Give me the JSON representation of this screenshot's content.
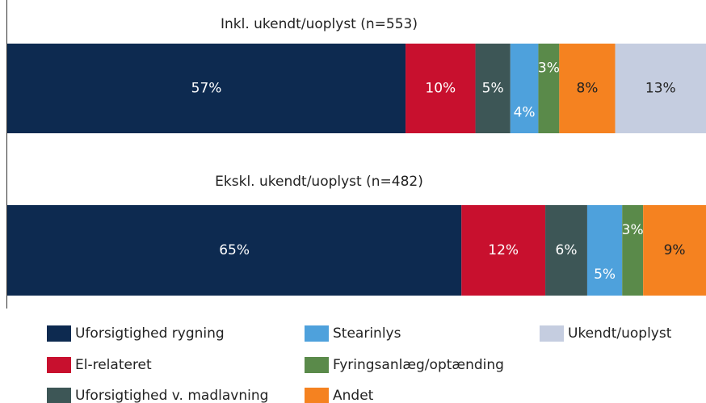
{
  "chart_data": {
    "type": "stacked-barh",
    "categories": [
      "Inkl. ukendt/uoplyst (n=553)",
      "Ekskl. ukendt/uoplyst (n=482)"
    ],
    "xlim": [
      0,
      100
    ],
    "series": [
      {
        "name": "Uforsigtighed rygning",
        "color": "#0d2a50",
        "values": [
          57,
          65
        ],
        "value_labels": [
          "57%",
          "65%"
        ]
      },
      {
        "name": "El-relateret",
        "color": "#c8102e",
        "values": [
          10,
          12
        ],
        "value_labels": [
          "10%",
          "12%"
        ]
      },
      {
        "name": "Uforsigtighed v. madlavning",
        "color": "#3d5656",
        "values": [
          5,
          6
        ],
        "value_labels": [
          "5%",
          "6%"
        ]
      },
      {
        "name": "Stearinlys",
        "color": "#4ea1dc",
        "values": [
          4,
          5
        ],
        "value_labels": [
          "4%",
          "5%"
        ]
      },
      {
        "name": "Fyringsanlæg/optænding",
        "color": "#5a8a4a",
        "values": [
          3,
          3
        ],
        "value_labels": [
          "3%",
          "3%"
        ]
      },
      {
        "name": "Andet",
        "color": "#f58220",
        "values": [
          8,
          9
        ],
        "value_labels": [
          "8%",
          "9%"
        ]
      },
      {
        "name": "Ukendt/uoplyst",
        "color": "#c5cde0",
        "values": [
          13,
          null
        ],
        "value_labels": [
          "13%",
          null
        ]
      }
    ]
  }
}
